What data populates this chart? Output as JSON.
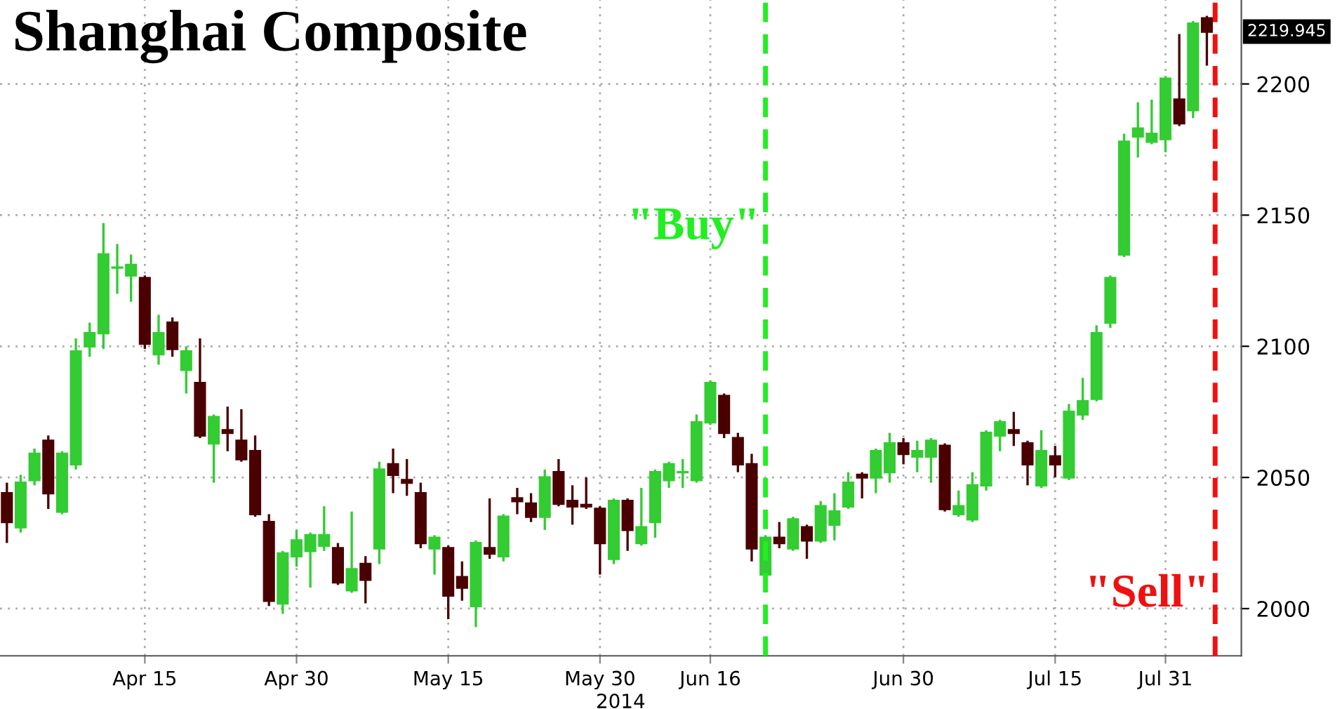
{
  "chart_data": {
    "type": "candlestick",
    "title": "Shanghai Composite",
    "xlabel": "2014",
    "categories": [
      null,
      null,
      null,
      null,
      null,
      null,
      null,
      null,
      null,
      null,
      "Apr 15",
      null,
      null,
      null,
      null,
      null,
      null,
      null,
      null,
      null,
      null,
      "Apr 30",
      null,
      null,
      null,
      null,
      null,
      null,
      null,
      null,
      null,
      null,
      "May 15",
      null,
      null,
      null,
      null,
      null,
      null,
      null,
      null,
      null,
      null,
      "May 30",
      null,
      null,
      null,
      null,
      null,
      null,
      null,
      "Jun 16",
      null,
      null,
      null,
      null,
      null,
      null,
      null,
      null,
      null,
      null,
      null,
      null,
      null,
      "Jun 30",
      null,
      null,
      null,
      null,
      null,
      null,
      null,
      null,
      null,
      null,
      "Jul 15",
      null,
      null,
      null,
      null,
      null,
      null,
      null,
      "Jul 31",
      null,
      null,
      null
    ],
    "ohlc": [
      [
        2044,
        2048,
        2025,
        2033
      ],
      [
        2031,
        2051,
        2029,
        2048
      ],
      [
        2049,
        2061,
        2047,
        2059
      ],
      [
        2064,
        2066,
        2038,
        2044
      ],
      [
        2037,
        2060,
        2036,
        2059
      ],
      [
        2055,
        2103,
        2053,
        2098
      ],
      [
        2100,
        2109,
        2096,
        2105
      ],
      [
        2105,
        2147,
        2099,
        2135
      ],
      [
        2130,
        2139,
        2120,
        2130
      ],
      [
        2127,
        2135,
        2117,
        2131
      ],
      [
        2126,
        2127,
        2099,
        2101
      ],
      [
        2097,
        2112,
        2093,
        2105
      ],
      [
        2109,
        2111,
        2096,
        2099
      ],
      [
        2091,
        2100,
        2082,
        2098
      ],
      [
        2086,
        2103,
        2065,
        2066
      ],
      [
        2063,
        2074,
        2048,
        2073
      ],
      [
        2068,
        2077,
        2060,
        2067
      ],
      [
        2064,
        2076,
        2056,
        2057
      ],
      [
        2060,
        2066,
        2035,
        2036
      ],
      [
        2033,
        2036,
        2001,
        2003
      ],
      [
        2002,
        2022,
        1998,
        2021
      ],
      [
        2020,
        2030,
        2016,
        2026
      ],
      [
        2022,
        2029,
        2008,
        2028
      ],
      [
        2024,
        2039,
        2022,
        2028
      ],
      [
        2023,
        2025,
        2009,
        2010
      ],
      [
        2007,
        2037,
        2006,
        2015
      ],
      [
        2017,
        2020,
        2002,
        2011
      ],
      [
        2023,
        2056,
        2017,
        2053
      ],
      [
        2055,
        2061,
        2044,
        2051
      ],
      [
        2049,
        2057,
        2043,
        2048
      ],
      [
        2044,
        2048,
        2023,
        2025
      ],
      [
        2023,
        2028,
        2013,
        2027
      ],
      [
        2023,
        2024,
        1996,
        2005
      ],
      [
        2012,
        2018,
        2003,
        2008
      ],
      [
        2001,
        2026,
        1993,
        2025
      ],
      [
        2023,
        2042,
        2019,
        2021
      ],
      [
        2020,
        2036,
        2018,
        2035
      ],
      [
        2042,
        2046,
        2036,
        2041
      ],
      [
        2040,
        2044,
        2033,
        2035
      ],
      [
        2035,
        2053,
        2030,
        2050
      ],
      [
        2052,
        2057,
        2039,
        2040
      ],
      [
        2041,
        2047,
        2032,
        2039
      ],
      [
        2039.5,
        2050,
        2038,
        2039
      ],
      [
        2038,
        2039,
        2013,
        2025
      ],
      [
        2019,
        2042,
        2017,
        2041
      ],
      [
        2041,
        2042,
        2022,
        2030
      ],
      [
        2025,
        2046,
        2024,
        2031
      ],
      [
        2033,
        2053,
        2027,
        2052
      ],
      [
        2049,
        2056,
        2046,
        2055
      ],
      [
        2052,
        2057,
        2046,
        2052
      ],
      [
        2049,
        2074,
        2048,
        2071
      ],
      [
        2071,
        2087,
        2070,
        2086
      ],
      [
        2081,
        2082,
        2065,
        2067
      ],
      [
        2065,
        2067,
        2052,
        2055
      ],
      [
        2055,
        2059,
        2018,
        2023
      ],
      [
        2013,
        2028,
        2012,
        2027
      ],
      [
        2027,
        2033,
        2023,
        2025
      ],
      [
        2023,
        2035,
        2022,
        2034
      ],
      [
        2031,
        2032,
        2019,
        2026
      ],
      [
        2026,
        2041,
        2025,
        2039
      ],
      [
        2032,
        2044,
        2026,
        2037
      ],
      [
        2039,
        2052,
        2038,
        2048
      ],
      [
        2051,
        2052,
        2042,
        2050
      ],
      [
        2050,
        2061,
        2044,
        2060
      ],
      [
        2052,
        2067,
        2048,
        2063
      ],
      [
        2063,
        2065,
        2055,
        2059
      ],
      [
        2058,
        2064,
        2052,
        2060
      ],
      [
        2058,
        2065,
        2048,
        2064
      ],
      [
        2062,
        2063,
        2037,
        2038
      ],
      [
        2036,
        2045,
        2035,
        2039
      ],
      [
        2034,
        2052,
        2033,
        2047
      ],
      [
        2047,
        2068,
        2045,
        2067
      ],
      [
        2066,
        2072,
        2060,
        2071
      ],
      [
        2068,
        2075,
        2062,
        2067
      ],
      [
        2063,
        2064,
        2047,
        2055
      ],
      [
        2047,
        2068,
        2046,
        2060
      ],
      [
        2058,
        2062,
        2050,
        2055
      ],
      [
        2050,
        2078,
        2049,
        2075
      ],
      [
        2074,
        2088,
        2072,
        2079
      ],
      [
        2080,
        2108,
        2079,
        2105
      ],
      [
        2109,
        2127,
        2107,
        2126
      ],
      [
        2135,
        2181,
        2134,
        2178
      ],
      [
        2180,
        2193,
        2172,
        2183
      ],
      [
        2178,
        2194,
        2177,
        2181
      ],
      [
        2179,
        2203,
        2174,
        2202
      ],
      [
        2194,
        2219,
        2184,
        2185
      ],
      [
        2190,
        2224,
        2187,
        2223
      ],
      [
        2225,
        2226,
        2207,
        2219.945
      ]
    ],
    "colors": [
      "#4a0000",
      "#33cc33",
      "#33cc33",
      "#4a0000",
      "#33cc33",
      "#33cc33",
      "#33cc33",
      "#33cc33",
      "#33cc33",
      "#33cc33",
      "#4a0000",
      "#33cc33",
      "#4a0000",
      "#33cc33",
      "#4a0000",
      "#33cc33",
      "#4a0000",
      "#4a0000",
      "#4a0000",
      "#4a0000",
      "#33cc33",
      "#33cc33",
      "#33cc33",
      "#33cc33",
      "#4a0000",
      "#33cc33",
      "#4a0000",
      "#33cc33",
      "#4a0000",
      "#4a0000",
      "#4a0000",
      "#33cc33",
      "#4a0000",
      "#4a0000",
      "#33cc33",
      "#4a0000",
      "#33cc33",
      "#4a0000",
      "#4a0000",
      "#33cc33",
      "#4a0000",
      "#4a0000",
      "#4a0000",
      "#4a0000",
      "#33cc33",
      "#4a0000",
      "#33cc33",
      "#33cc33",
      "#33cc33",
      "#33cc33",
      "#33cc33",
      "#33cc33",
      "#4a0000",
      "#4a0000",
      "#4a0000",
      "#33cc33",
      "#4a0000",
      "#33cc33",
      "#4a0000",
      "#33cc33",
      "#33cc33",
      "#33cc33",
      "#4a0000",
      "#33cc33",
      "#33cc33",
      "#4a0000",
      "#33cc33",
      "#33cc33",
      "#4a0000",
      "#33cc33",
      "#33cc33",
      "#33cc33",
      "#33cc33",
      "#4a0000",
      "#4a0000",
      "#33cc33",
      "#4a0000",
      "#33cc33",
      "#33cc33",
      "#33cc33",
      "#33cc33",
      "#33cc33",
      "#33cc33",
      "#33cc33",
      "#33cc33",
      "#4a0000",
      "#33cc33",
      "#4a0000"
    ],
    "ylim": [
      1982,
      2232
    ],
    "yticks": [
      2000,
      2050,
      2100,
      2150,
      2200
    ],
    "annotations": [
      "\"Buy\"",
      "\"Sell\"",
      "2219.945"
    ],
    "grid": true
  }
}
